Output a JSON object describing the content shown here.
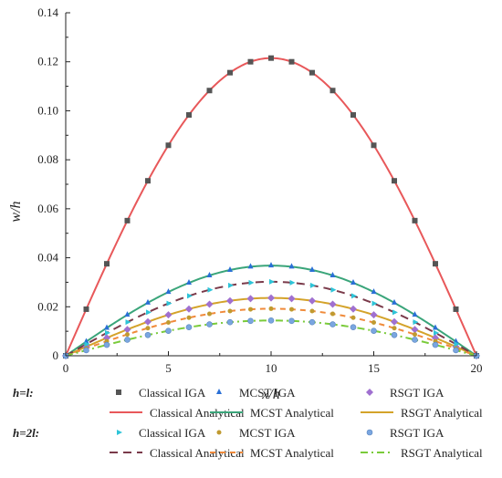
{
  "chart_data": {
    "type": "line",
    "title": "",
    "xlabel": "x/h",
    "ylabel": "w/h",
    "xlim": [
      0,
      20
    ],
    "ylim": [
      0,
      0.14
    ],
    "xticks": [
      "0",
      "5",
      "10",
      "15",
      "20"
    ],
    "yticks": [
      "0",
      "0.02",
      "0.04",
      "0.06",
      "0.08",
      "0.10",
      "0.12",
      "0.14"
    ],
    "grid": false,
    "legend_position": "bottom",
    "legend_groups": [
      "h=l:",
      "h=2l:"
    ],
    "x": [
      0,
      1,
      2,
      3,
      4,
      5,
      6,
      7,
      8,
      9,
      10,
      11,
      12,
      13,
      14,
      15,
      16,
      17,
      18,
      19,
      20
    ],
    "series": [
      {
        "name": "Classical IGA",
        "group": 0,
        "kind": "markers",
        "marker": "square",
        "color": "#555555",
        "peak": 0.1215
      },
      {
        "name": "MCST IGA",
        "group": 0,
        "kind": "markers",
        "marker": "triangle-up",
        "color": "#2a6fd6",
        "peak": 0.0368
      },
      {
        "name": "RSGT IGA",
        "group": 0,
        "kind": "markers",
        "marker": "diamond",
        "color": "#a070d0",
        "peak": 0.0236
      },
      {
        "name": "Classical Analytical",
        "group": 0,
        "kind": "line",
        "dash": "solid",
        "color": "#e8585a",
        "peak": 0.1215
      },
      {
        "name": "MCST Analytical",
        "group": 0,
        "kind": "line",
        "dash": "solid",
        "color": "#3aa57a",
        "peak": 0.0368
      },
      {
        "name": "RSGT Analytical",
        "group": 0,
        "kind": "line",
        "dash": "solid",
        "color": "#d4a32a",
        "peak": 0.0236
      },
      {
        "name": "Classical IGA",
        "group": 1,
        "kind": "markers",
        "marker": "triangle-right",
        "color": "#2ec4d8",
        "peak": 0.0302
      },
      {
        "name": "MCST IGA",
        "group": 1,
        "kind": "markers",
        "marker": "circle-small",
        "color": "#c09a30",
        "peak": 0.0192
      },
      {
        "name": "RSGT IGA",
        "group": 1,
        "kind": "markers",
        "marker": "circle",
        "color": "#7aa6e0",
        "peak": 0.0144
      },
      {
        "name": "Classical Analytical",
        "group": 1,
        "kind": "line",
        "dash": "long",
        "color": "#7a3a4a",
        "peak": 0.0302
      },
      {
        "name": "MCST Analytical",
        "group": 1,
        "kind": "line",
        "dash": "short",
        "color": "#f08a3a",
        "peak": 0.0192
      },
      {
        "name": "RSGT Analytical",
        "group": 1,
        "kind": "line",
        "dash": "dashdot",
        "color": "#7acb3a",
        "peak": 0.0144
      }
    ]
  }
}
